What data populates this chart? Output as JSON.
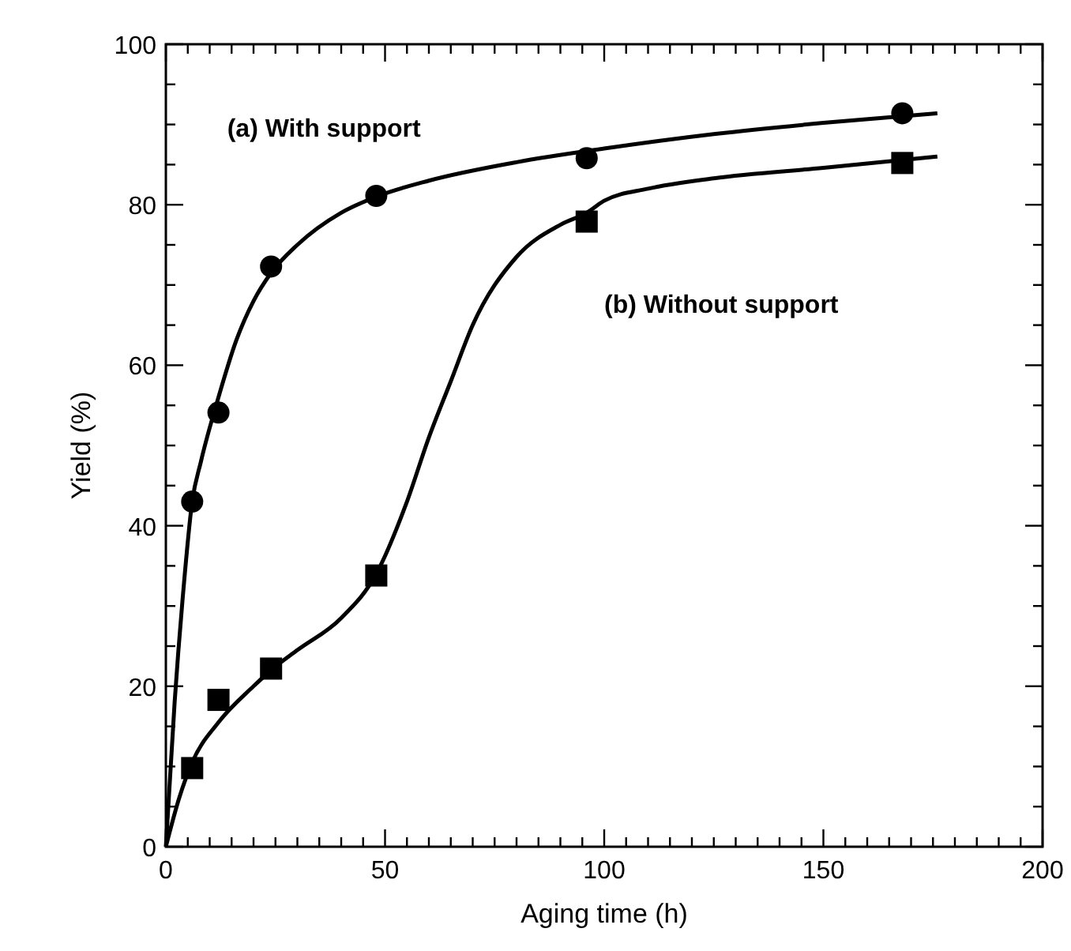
{
  "chart_data": {
    "type": "scatter",
    "xlabel": "Aging time (h)",
    "ylabel": "Yield (%)",
    "xlim": [
      0,
      200
    ],
    "ylim": [
      0,
      100
    ],
    "xticks": [
      0,
      {
        "value": 5,
        "label": null
      },
      {
        "value": 10,
        "label": null
      },
      {
        "value": 15,
        "label": null
      },
      {
        "value": 20,
        "label": null
      },
      {
        "value": 25,
        "label": null
      },
      {
        "value": 30,
        "label": null
      },
      {
        "value": 35,
        "label": null
      },
      {
        "value": 40,
        "label": null
      },
      {
        "value": 45,
        "label": null
      },
      50,
      {
        "value": 55,
        "label": null
      },
      {
        "value": 60,
        "label": null
      },
      {
        "value": 65,
        "label": null
      },
      {
        "value": 70,
        "label": null
      },
      {
        "value": 75,
        "label": null
      },
      {
        "value": 80,
        "label": null
      },
      {
        "value": 85,
        "label": null
      },
      {
        "value": 90,
        "label": null
      },
      {
        "value": 95,
        "label": null
      },
      100,
      {
        "value": 105,
        "label": null
      },
      {
        "value": 110,
        "label": null
      },
      {
        "value": 115,
        "label": null
      },
      {
        "value": 120,
        "label": null
      },
      {
        "value": 125,
        "label": null
      },
      {
        "value": 130,
        "label": null
      },
      {
        "value": 135,
        "label": null
      },
      {
        "value": 140,
        "label": null
      },
      {
        "value": 145,
        "label": null
      },
      150,
      {
        "value": 155,
        "label": null
      },
      {
        "value": 160,
        "label": null
      },
      {
        "value": 165,
        "label": null
      },
      {
        "value": 170,
        "label": null
      },
      {
        "value": 175,
        "label": null
      },
      {
        "value": 180,
        "label": null
      },
      {
        "value": 185,
        "label": null
      },
      {
        "value": 190,
        "label": null
      },
      {
        "value": 195,
        "label": null
      },
      200
    ],
    "yticks": [
      0,
      {
        "value": 5,
        "label": null
      },
      {
        "value": 10,
        "label": null
      },
      {
        "value": 15,
        "label": null
      },
      20,
      {
        "value": 25,
        "label": null
      },
      {
        "value": 30,
        "label": null
      },
      {
        "value": 35,
        "label": null
      },
      40,
      {
        "value": 45,
        "label": null
      },
      {
        "value": 50,
        "label": null
      },
      {
        "value": 55,
        "label": null
      },
      60,
      {
        "value": 65,
        "label": null
      },
      {
        "value": 70,
        "label": null
      },
      {
        "value": 75,
        "label": null
      },
      80,
      {
        "value": 85,
        "label": null
      },
      {
        "value": 90,
        "label": null
      },
      {
        "value": 95,
        "label": null
      },
      100
    ],
    "grid": false,
    "series": [
      {
        "marker": "circle",
        "color": "#000000",
        "x": [
          6,
          12,
          24,
          48,
          96,
          168
        ],
        "values": [
          43.0,
          54.1,
          72.3,
          81.1,
          85.8,
          91.4
        ]
      },
      {
        "marker": "square",
        "color": "#000000",
        "x": [
          6,
          12,
          24,
          48,
          96,
          168
        ],
        "values": [
          9.8,
          18.3,
          22.2,
          33.8,
          77.9,
          85.2
        ]
      },
      {
        "type": "line",
        "marker": "none",
        "color": "#000000",
        "x": [
          0,
          2,
          4,
          6,
          8,
          12,
          16,
          20,
          24,
          30,
          40,
          48,
          60,
          80,
          100,
          125,
          150,
          176
        ],
        "values": [
          0,
          18,
          32,
          43,
          48,
          56,
          63,
          68,
          71.5,
          75,
          79,
          81,
          83,
          85.3,
          87,
          88.8,
          90.2,
          91.4
        ]
      },
      {
        "type": "line",
        "marker": "none",
        "color": "#000000",
        "x": [
          0,
          3,
          6,
          12,
          20,
          24,
          30,
          40,
          48,
          55,
          60,
          65,
          70,
          80,
          90,
          96,
          100,
          110,
          125,
          150,
          176
        ],
        "values": [
          0,
          6,
          10.5,
          15.5,
          20,
          22,
          24.5,
          28.5,
          34,
          43,
          51,
          58,
          65,
          73.5,
          77.5,
          79,
          80.5,
          82,
          83.3,
          84.6,
          86
        ]
      }
    ],
    "annotations": [
      "(a) With support",
      "(b) Without support"
    ]
  }
}
